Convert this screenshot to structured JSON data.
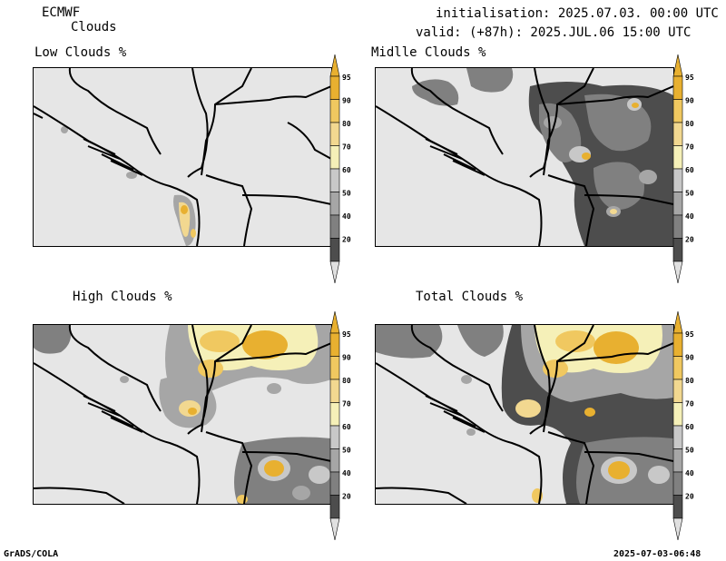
{
  "header": {
    "model": "ECMWF",
    "product": "Clouds",
    "init": "initialisation: 2025.07.03. 00:00 UTC",
    "valid": "valid: (+87h): 2025.JUL.06 15:00 UTC"
  },
  "panels": {
    "low": {
      "title": "Low Clouds %"
    },
    "mid": {
      "title": "Midlle Clouds %"
    },
    "high": {
      "title": "High Clouds %"
    },
    "total": {
      "title": "Total Clouds %"
    }
  },
  "colorbar": {
    "levels": [
      "20",
      "40",
      "50",
      "60",
      "70",
      "80",
      "90",
      "95"
    ],
    "colors": [
      "#4d4d4d",
      "#808080",
      "#a6a6a6",
      "#c8c8c8",
      "#f5f0b8",
      "#f2d890",
      "#f0c860",
      "#e8b030"
    ],
    "end_low": "#e0e0e0",
    "end_high": "#e8b030"
  },
  "footer": {
    "left": "GrADS/COLA",
    "right": "2025-07-03-06:48"
  }
}
